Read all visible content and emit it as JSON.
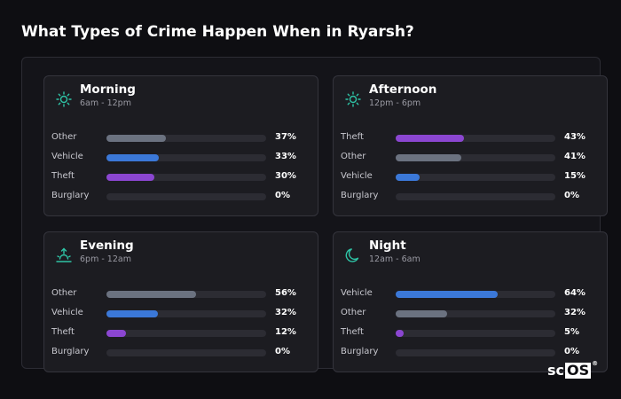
{
  "page": {
    "title": "What Types of Crime Happen When in Ryarsh?"
  },
  "colors": {
    "other": "#6b7280",
    "vehicle": "#3b78d8",
    "theft": "#8b46d1",
    "burglary": "#2c2c33",
    "icon": "#2ec4a6"
  },
  "cards": [
    {
      "title": "Morning",
      "subtitle": "6am - 12pm",
      "icon": "sun-icon",
      "rows": [
        {
          "label": "Other",
          "value": "37%",
          "fraction": 0.37,
          "color": "#6b7280"
        },
        {
          "label": "Vehicle",
          "value": "33%",
          "fraction": 0.33,
          "color": "#3b78d8"
        },
        {
          "label": "Theft",
          "value": "30%",
          "fraction": 0.3,
          "color": "#8b46d1"
        },
        {
          "label": "Burglary",
          "value": "0%",
          "fraction": 0,
          "color": "#2c2c33"
        }
      ]
    },
    {
      "title": "Afternoon",
      "subtitle": "12pm - 6pm",
      "icon": "sun-icon",
      "rows": [
        {
          "label": "Theft",
          "value": "43%",
          "fraction": 0.43,
          "color": "#8b46d1"
        },
        {
          "label": "Other",
          "value": "41%",
          "fraction": 0.41,
          "color": "#6b7280"
        },
        {
          "label": "Vehicle",
          "value": "15%",
          "fraction": 0.15,
          "color": "#3b78d8"
        },
        {
          "label": "Burglary",
          "value": "0%",
          "fraction": 0,
          "color": "#2c2c33"
        }
      ]
    },
    {
      "title": "Evening",
      "subtitle": "6pm - 12am",
      "icon": "sunset-icon",
      "rows": [
        {
          "label": "Other",
          "value": "56%",
          "fraction": 0.56,
          "color": "#6b7280"
        },
        {
          "label": "Vehicle",
          "value": "32%",
          "fraction": 0.32,
          "color": "#3b78d8"
        },
        {
          "label": "Theft",
          "value": "12%",
          "fraction": 0.12,
          "color": "#8b46d1"
        },
        {
          "label": "Burglary",
          "value": "0%",
          "fraction": 0,
          "color": "#2c2c33"
        }
      ]
    },
    {
      "title": "Night",
      "subtitle": "12am - 6am",
      "icon": "moon-icon",
      "rows": [
        {
          "label": "Vehicle",
          "value": "64%",
          "fraction": 0.64,
          "color": "#3b78d8"
        },
        {
          "label": "Other",
          "value": "32%",
          "fraction": 0.32,
          "color": "#6b7280"
        },
        {
          "label": "Theft",
          "value": "5%",
          "fraction": 0.05,
          "color": "#8b46d1"
        },
        {
          "label": "Burglary",
          "value": "0%",
          "fraction": 0,
          "color": "#2c2c33"
        }
      ]
    }
  ],
  "logo": {
    "prefix": "sc",
    "suffix": "OS",
    "mark": "®"
  }
}
